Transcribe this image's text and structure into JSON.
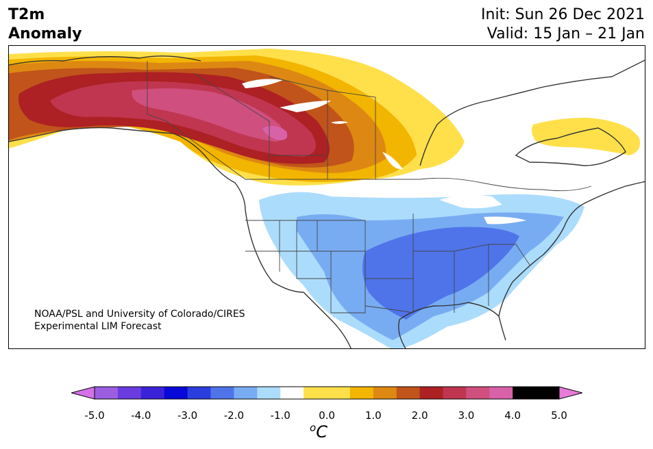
{
  "title": {
    "left_line1": "T2m",
    "left_line2": "Anomaly",
    "right_line1": "Init: Sun 26 Dec 2021",
    "right_line2": "Valid: 15 Jan – 21 Jan"
  },
  "credit": {
    "line1": "NOAA/PSL and University of Colorado/CIRES",
    "line2": "Experimental LIM Forecast"
  },
  "colorbar": {
    "ticks": [
      "-5.0",
      "-4.0",
      "-3.0",
      "-2.0",
      "-1.0",
      "0.0",
      "1.0",
      "2.0",
      "3.0",
      "4.0",
      "5.0"
    ],
    "unit_prefix": "o",
    "unit_main": "C",
    "under_color": "#d470e8",
    "over_color": "#e87ad8",
    "levels": [
      -5.0,
      -4.5,
      -4.0,
      -3.5,
      -3.0,
      -2.5,
      -2.0,
      -1.5,
      -1.0,
      -0.5,
      0.5,
      1.0,
      1.5,
      2.0,
      2.5,
      3.0,
      3.5,
      4.0,
      4.5,
      5.0
    ],
    "colors": [
      "#9b5ee0",
      "#6a3ce0",
      "#3a22d8",
      "#0808d8",
      "#2a3ee0",
      "#4f74ea",
      "#78acf2",
      "#acdcfc",
      "#ffffff",
      "#ffe04a",
      "#f2b500",
      "#dd8812",
      "#c0541a",
      "#ad2023",
      "#c03650",
      "#cf4f7e",
      "#d862a8"
    ]
  }
}
